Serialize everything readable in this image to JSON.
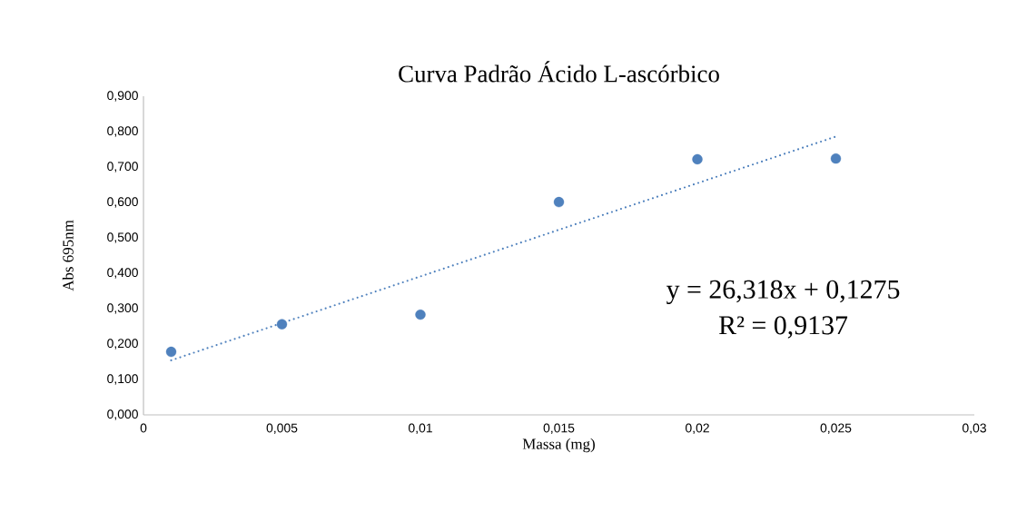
{
  "chart_data": {
    "type": "scatter",
    "title": "Curva Padrão Ácido L-ascórbico",
    "xlabel": "Massa (mg)",
    "ylabel": "Abs 695nm",
    "series": [
      {
        "color": "#4f81bd",
        "marker": "circle",
        "x": [
          0.001,
          0.005,
          0.01,
          0.015,
          0.02,
          0.025
        ],
        "values": [
          0.178,
          0.256,
          0.283,
          0.601,
          0.722,
          0.724
        ]
      },
      {
        "type": "line",
        "color": "#4f81bd",
        "marker": "none",
        "line_style": "dotted",
        "x": [
          0.001,
          0.025
        ],
        "values": [
          0.154,
          0.786
        ]
      }
    ],
    "xlim": [
      0,
      0.03
    ],
    "xticks": [
      0,
      {
        "value": 0.005,
        "label": "0,005"
      },
      {
        "value": 0.01,
        "label": "0,01"
      },
      {
        "value": 0.015,
        "label": "0,015"
      },
      {
        "value": 0.02,
        "label": "0,02"
      },
      {
        "value": 0.025,
        "label": "0,025"
      },
      {
        "value": 0.03,
        "label": "0,03"
      }
    ],
    "ylim": [
      0,
      0.9
    ],
    "yticks": [
      {
        "value": 0,
        "label": "0,000"
      },
      {
        "value": 0.1,
        "label": "0,100"
      },
      {
        "value": 0.2,
        "label": "0,200"
      },
      {
        "value": 0.3,
        "label": "0,300"
      },
      {
        "value": 0.4,
        "label": "0,400"
      },
      {
        "value": 0.5,
        "label": "0,500"
      },
      {
        "value": 0.6,
        "label": "0,600"
      },
      {
        "value": 0.7,
        "label": "0,700"
      },
      {
        "value": 0.8,
        "label": "0,800"
      },
      {
        "value": 0.9,
        "label": "0,900"
      }
    ],
    "annotations": [
      "y = 26,318x + 0,1275",
      "R² = 0,9137"
    ],
    "grid": false
  }
}
